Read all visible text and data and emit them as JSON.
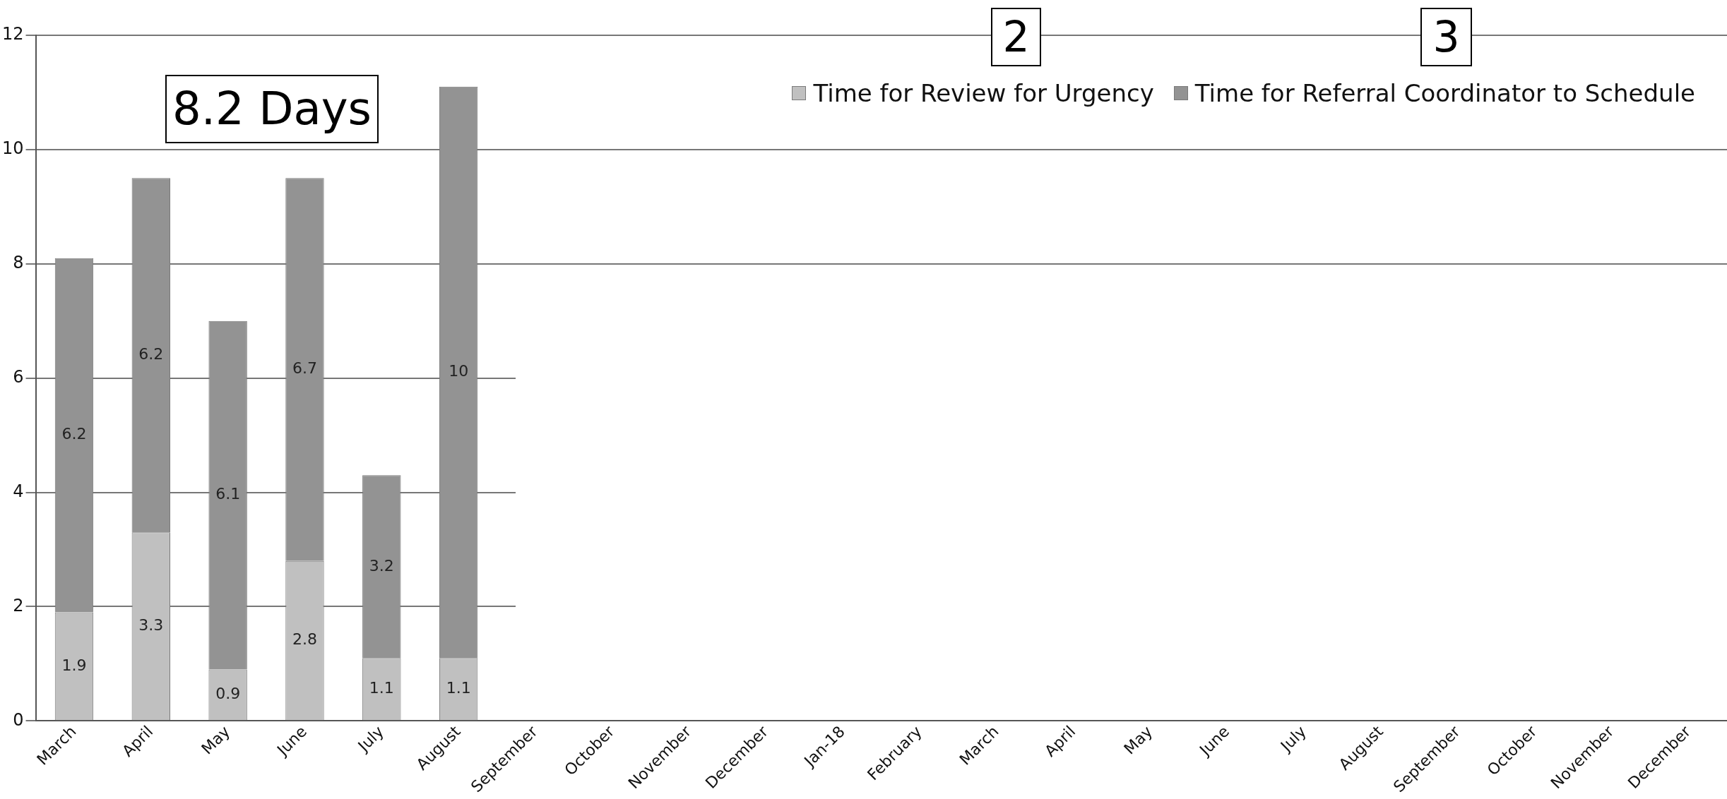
{
  "chart_data": {
    "type": "bar",
    "stacked": true,
    "categories": [
      "March",
      "April",
      "May",
      "June",
      "July",
      "August",
      "September",
      "October",
      "November",
      "December",
      "Jan-18",
      "February",
      "March",
      "April",
      "May",
      "June",
      "July",
      "August",
      "September",
      "October",
      "November",
      "December"
    ],
    "series": [
      {
        "name": "Time for Review for Urgency",
        "color": "#c0c0c0",
        "values": [
          1.9,
          3.3,
          0.9,
          2.8,
          1.1,
          1.1,
          null,
          null,
          null,
          null,
          null,
          null,
          null,
          null,
          null,
          null,
          null,
          null,
          null,
          null,
          null,
          null
        ]
      },
      {
        "name": "Time for Referral Coordinator to Schedule",
        "color": "#939393",
        "values": [
          6.2,
          6.2,
          6.1,
          6.7,
          3.2,
          10,
          null,
          null,
          null,
          null,
          null,
          null,
          null,
          null,
          null,
          null,
          null,
          null,
          null,
          null,
          null,
          null
        ]
      }
    ],
    "ylim": [
      0,
      12
    ],
    "yticks": [
      0,
      2,
      4,
      6,
      8,
      10,
      12
    ],
    "grid": "y",
    "legend": "top right",
    "data_labels": true,
    "annotations": [
      "8.2 Days",
      "2",
      "3"
    ]
  }
}
